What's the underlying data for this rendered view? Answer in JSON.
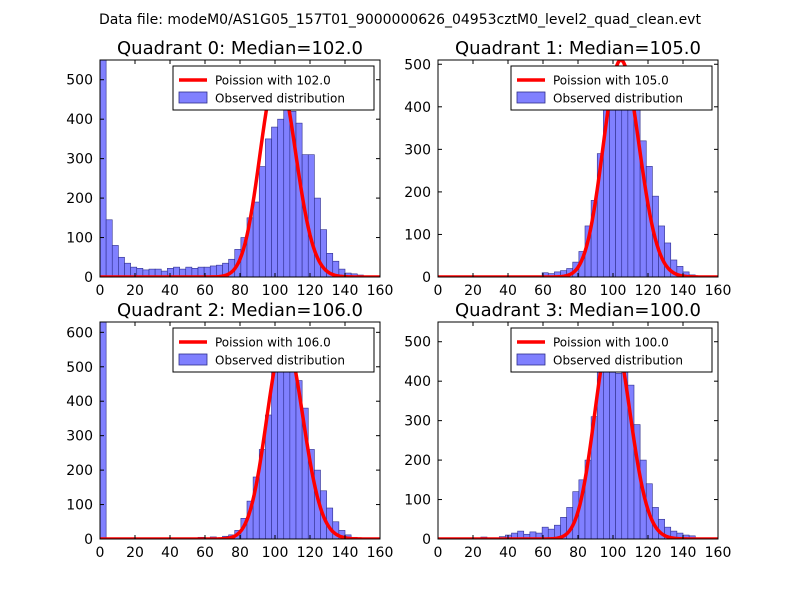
{
  "figure": {
    "suptitle": "Data file: modeM0/AS1G05_157T01_9000000626_04953cztM0_level2_quad_clean.evt"
  },
  "colors": {
    "bar_fill": "#8080ff",
    "bar_edge": "#2e2e8c",
    "curve": "#ff0000",
    "axes": "#000000",
    "legend_edge": "#000000"
  },
  "chart_data": [
    {
      "type": "bar",
      "title": "Quadrant 0: Median=102.0",
      "median": 102.0,
      "xlim": [
        0,
        160
      ],
      "ylim": [
        0,
        550
      ],
      "xticks": [
        0,
        20,
        40,
        60,
        80,
        100,
        120,
        140,
        160
      ],
      "yticks": [
        0,
        100,
        200,
        300,
        400,
        500
      ],
      "bin_width": 3.5,
      "bins_start": [
        0,
        3.5,
        7,
        10.5,
        14,
        17.5,
        21,
        24.5,
        28,
        31.5,
        35,
        38.5,
        42,
        45.5,
        49,
        52.5,
        56,
        59.5,
        63,
        66.5,
        70,
        73.5,
        77,
        80.5,
        84,
        87.5,
        91,
        94.5,
        98,
        101.5,
        105,
        108.5,
        112,
        115.5,
        119,
        122.5,
        126,
        129.5,
        133,
        136.5,
        140,
        143.5,
        147
      ],
      "values": [
        550,
        145,
        80,
        50,
        35,
        25,
        22,
        18,
        20,
        20,
        15,
        22,
        25,
        20,
        25,
        22,
        25,
        25,
        28,
        30,
        35,
        45,
        70,
        100,
        150,
        190,
        280,
        350,
        380,
        400,
        500,
        420,
        390,
        310,
        310,
        200,
        120,
        60,
        40,
        20,
        10,
        8,
        5
      ],
      "curve": {
        "mean": 102.0,
        "label": "Poission with 102.0"
      },
      "legend": {
        "line_label": "Poission with 102.0",
        "patch_label": "Observed distribution",
        "loc": "upper right"
      }
    },
    {
      "type": "bar",
      "title": "Quadrant 1: Median=105.0",
      "median": 105.0,
      "xlim": [
        0,
        160
      ],
      "ylim": [
        0,
        510
      ],
      "xticks": [
        0,
        20,
        40,
        60,
        80,
        100,
        120,
        140,
        160
      ],
      "yticks": [
        0,
        100,
        200,
        300,
        400,
        500
      ],
      "bin_width": 3.5,
      "bins_start": [
        59.5,
        63,
        66.5,
        70,
        73.5,
        77,
        80.5,
        84,
        87.5,
        91,
        94.5,
        98,
        101.5,
        105,
        108.5,
        112,
        115.5,
        119,
        122.5,
        126,
        129.5,
        133,
        136.5,
        140,
        143.5
      ],
      "values": [
        10,
        8,
        12,
        15,
        20,
        35,
        60,
        120,
        180,
        290,
        420,
        460,
        490,
        480,
        460,
        420,
        320,
        260,
        190,
        120,
        80,
        40,
        25,
        12,
        5
      ],
      "curve": {
        "mean": 105.0,
        "label": "Poission with 105.0"
      },
      "legend": {
        "line_label": "Poission with 105.0",
        "patch_label": "Observed distribution",
        "loc": "upper right"
      }
    },
    {
      "type": "bar",
      "title": "Quadrant 2: Median=106.0",
      "median": 106.0,
      "xlim": [
        0,
        160
      ],
      "ylim": [
        0,
        630
      ],
      "xticks": [
        0,
        20,
        40,
        60,
        80,
        100,
        120,
        140,
        160
      ],
      "yticks": [
        0,
        100,
        200,
        300,
        400,
        500,
        600
      ],
      "bin_width": 3.5,
      "bins_start": [
        0,
        56,
        63,
        70,
        73.5,
        77,
        80.5,
        84,
        87.5,
        91,
        94.5,
        98,
        101.5,
        105,
        108.5,
        112,
        115.5,
        119,
        122.5,
        126,
        129.5,
        133,
        136.5,
        140,
        143.5
      ],
      "values": [
        630,
        5,
        6,
        8,
        12,
        25,
        60,
        110,
        180,
        260,
        360,
        520,
        560,
        500,
        490,
        460,
        380,
        260,
        200,
        140,
        90,
        50,
        25,
        12,
        5
      ],
      "curve": {
        "mean": 106.0,
        "label": "Poission with 106.0"
      },
      "legend": {
        "line_label": "Poission with 106.0",
        "patch_label": "Observed distribution",
        "loc": "upper right"
      }
    },
    {
      "type": "bar",
      "title": "Quadrant 3: Median=100.0",
      "median": 100.0,
      "xlim": [
        0,
        160
      ],
      "ylim": [
        0,
        550
      ],
      "xticks": [
        0,
        20,
        40,
        60,
        80,
        100,
        120,
        140,
        160
      ],
      "yticks": [
        0,
        100,
        200,
        300,
        400,
        500
      ],
      "bin_width": 3.5,
      "bins_start": [
        24.5,
        28,
        35,
        38.5,
        42,
        45.5,
        49,
        52.5,
        56,
        59.5,
        63,
        66.5,
        70,
        73.5,
        77,
        80.5,
        84,
        87.5,
        91,
        94.5,
        98,
        101.5,
        105,
        108.5,
        112,
        115.5,
        119,
        122.5,
        126,
        129.5,
        133,
        136.5,
        140,
        143.5,
        147
      ],
      "values": [
        5,
        3,
        6,
        10,
        15,
        20,
        12,
        18,
        15,
        30,
        25,
        35,
        55,
        80,
        120,
        150,
        200,
        310,
        440,
        510,
        480,
        420,
        470,
        390,
        290,
        200,
        140,
        80,
        50,
        30,
        20,
        15,
        10,
        8,
        3
      ],
      "curve": {
        "mean": 100.0,
        "label": "Poission with 100.0"
      },
      "legend": {
        "line_label": "Poission with 100.0",
        "patch_label": "Observed distribution",
        "loc": "upper right"
      }
    }
  ]
}
